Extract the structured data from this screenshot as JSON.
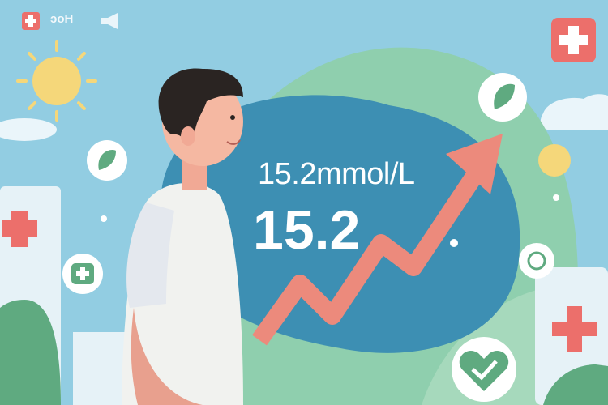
{
  "reading": {
    "unit_text": "15.2mmol/L",
    "value": "15.2"
  },
  "corner_label": "ɔoH",
  "colors": {
    "sky": "#8fcbe0",
    "blob": "#3d8fb3",
    "hill": "#7fc3a6",
    "arrow": "#ec8a7c",
    "cross": "#ec6f6b",
    "sun": "#f5d77a"
  },
  "icons": [
    "medical-cross-icon",
    "sun-icon",
    "leaf-icon",
    "heart-check-icon",
    "plus-icon",
    "pill-icon",
    "megaphone-icon"
  ]
}
